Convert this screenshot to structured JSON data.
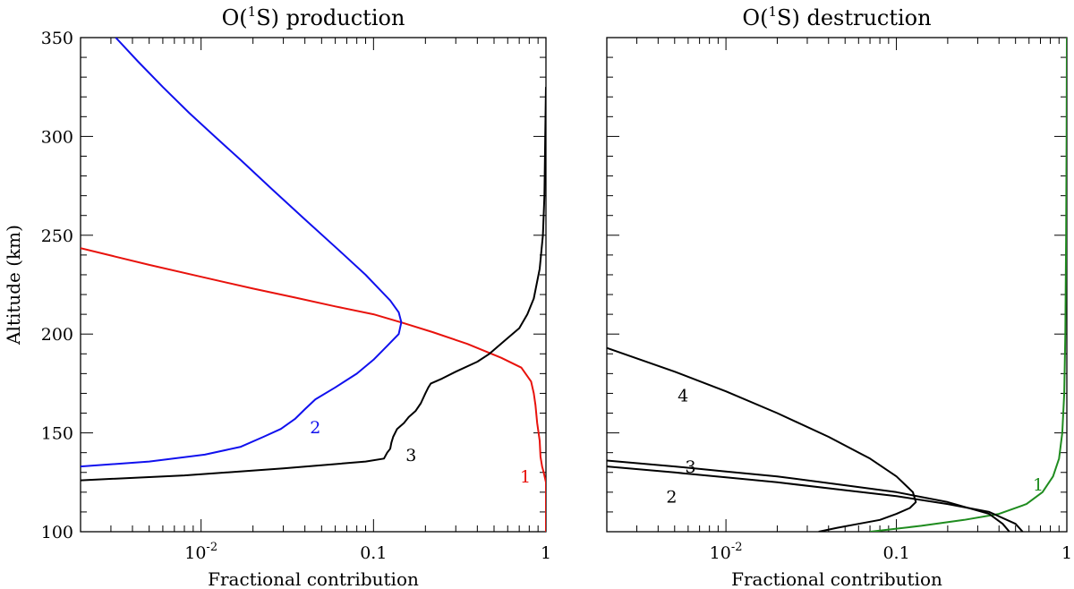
{
  "chart_data": [
    {
      "type": "line",
      "title": {
        "prefix": "O(",
        "sup": "1",
        "suffix": "S) production"
      },
      "xlabel": "Fractional contribution",
      "ylabel": "Altitude (km)",
      "xscale": "log",
      "xlim": [
        0.002,
        1
      ],
      "ylim": [
        100,
        350
      ],
      "grid": false,
      "x_major_ticks": [
        0.01,
        0.1,
        1
      ],
      "x_tick_labels": [
        {
          "base": "10",
          "exp": "-2"
        },
        {
          "base": "0.1",
          "exp": ""
        },
        {
          "base": "1",
          "exp": ""
        }
      ],
      "y_ticks": [
        100,
        150,
        200,
        250,
        300,
        350
      ],
      "y_tick_labels": [
        "100",
        "150",
        "200",
        "250",
        "300",
        "350"
      ],
      "series": [
        {
          "label": "1",
          "color": "#e8120c",
          "label_pos": {
            "x": 0.76,
            "y": 128
          },
          "points": [
            [
              1,
              100
            ],
            [
              1,
              125
            ],
            [
              0.97,
              130
            ],
            [
              0.95,
              133
            ],
            [
              0.93,
              138
            ],
            [
              0.92,
              146
            ],
            [
              0.89,
              155
            ],
            [
              0.87,
              164
            ],
            [
              0.85,
              170
            ],
            [
              0.82,
              176
            ],
            [
              0.72,
              183
            ],
            [
              0.55,
              188
            ],
            [
              0.35,
              195
            ],
            [
              0.22,
              201
            ],
            [
              0.15,
              205.5
            ],
            [
              0.1,
              210
            ],
            [
              0.06,
              214
            ],
            [
              0.035,
              218.5
            ],
            [
              0.02,
              223
            ],
            [
              0.01,
              229
            ],
            [
              0.005,
              235
            ],
            [
              0.002,
              243.5
            ]
          ]
        },
        {
          "label": "2",
          "color": "#1010ee",
          "label_pos": {
            "x": 0.046,
            "y": 153
          },
          "points": [
            [
              0.002,
              133
            ],
            [
              0.005,
              135.5
            ],
            [
              0.0105,
              139
            ],
            [
              0.017,
              143
            ],
            [
              0.023,
              148
            ],
            [
              0.029,
              152
            ],
            [
              0.035,
              157
            ],
            [
              0.04,
              162
            ],
            [
              0.046,
              167
            ],
            [
              0.06,
              173
            ],
            [
              0.08,
              180
            ],
            [
              0.1,
              187
            ],
            [
              0.12,
              194
            ],
            [
              0.14,
              200
            ],
            [
              0.145,
              206
            ],
            [
              0.14,
              211
            ],
            [
              0.125,
              217
            ],
            [
              0.11,
              222
            ],
            [
              0.09,
              230
            ],
            [
              0.062,
              243
            ],
            [
              0.04,
              258
            ],
            [
              0.026,
              273
            ],
            [
              0.017,
              288
            ],
            [
              0.012,
              300
            ],
            [
              0.0085,
              312
            ],
            [
              0.006,
              325
            ],
            [
              0.0043,
              338
            ],
            [
              0.0032,
              350
            ]
          ]
        },
        {
          "label": "3",
          "color": "#000000",
          "label_pos": {
            "x": 0.165,
            "y": 139
          },
          "points": [
            [
              0.002,
              126
            ],
            [
              0.008,
              128.5
            ],
            [
              0.03,
              132
            ],
            [
              0.09,
              135.5
            ],
            [
              0.115,
              137
            ],
            [
              0.12,
              140
            ],
            [
              0.125,
              142
            ],
            [
              0.127,
              145
            ],
            [
              0.13,
              148
            ],
            [
              0.137,
              152
            ],
            [
              0.15,
              155
            ],
            [
              0.16,
              158
            ],
            [
              0.175,
              161
            ],
            [
              0.188,
              165
            ],
            [
              0.2,
              170
            ],
            [
              0.208,
              173
            ],
            [
              0.215,
              175
            ],
            [
              0.25,
              177.5
            ],
            [
              0.3,
              181
            ],
            [
              0.4,
              186
            ],
            [
              0.47,
              190
            ],
            [
              0.6,
              198
            ],
            [
              0.7,
              203
            ],
            [
              0.78,
              210
            ],
            [
              0.85,
              218
            ],
            [
              0.92,
              233
            ],
            [
              0.96,
              250
            ],
            [
              0.98,
              270
            ],
            [
              0.99,
              300
            ],
            [
              1,
              325
            ]
          ]
        }
      ]
    },
    {
      "type": "line",
      "title": {
        "prefix": "O(",
        "sup": "1",
        "suffix": "S) destruction"
      },
      "xlabel": "Fractional contribution",
      "ylabel": "",
      "xscale": "log",
      "xlim": [
        0.002,
        1
      ],
      "ylim": [
        100,
        350
      ],
      "grid": false,
      "x_major_ticks": [
        0.01,
        0.1,
        1
      ],
      "x_tick_labels": [
        {
          "base": "10",
          "exp": "-2"
        },
        {
          "base": "0.1",
          "exp": ""
        },
        {
          "base": "1",
          "exp": ""
        }
      ],
      "y_ticks": [
        100,
        150,
        200,
        250,
        300,
        350
      ],
      "y_tick_labels": [],
      "series": [
        {
          "label": "1",
          "color": "#1f8c1f",
          "label_pos": {
            "x": 0.68,
            "y": 124
          },
          "points": [
            [
              0.07,
              100
            ],
            [
              0.14,
              103
            ],
            [
              0.25,
              106
            ],
            [
              0.4,
              109
            ],
            [
              0.58,
              114
            ],
            [
              0.72,
              120
            ],
            [
              0.83,
              128
            ],
            [
              0.9,
              137
            ],
            [
              0.94,
              150
            ],
            [
              0.965,
              170
            ],
            [
              0.98,
              200
            ],
            [
              0.99,
              250
            ],
            [
              0.996,
              300
            ],
            [
              1,
              350
            ]
          ]
        },
        {
          "label": "2",
          "color": "#000000",
          "label_pos": {
            "x": 0.0048,
            "y": 118
          },
          "points": [
            [
              0.002,
              133
            ],
            [
              0.005,
              130
            ],
            [
              0.01,
              127.5
            ],
            [
              0.02,
              125
            ],
            [
              0.05,
              121
            ],
            [
              0.1,
              118
            ],
            [
              0.2,
              114
            ],
            [
              0.35,
              110
            ],
            [
              0.5,
              104
            ],
            [
              0.55,
              100
            ]
          ]
        },
        {
          "label": "3",
          "color": "#000000",
          "label_pos": {
            "x": 0.0062,
            "y": 133
          },
          "points": [
            [
              0.002,
              136
            ],
            [
              0.005,
              133
            ],
            [
              0.01,
              130.5
            ],
            [
              0.02,
              128
            ],
            [
              0.05,
              123.5
            ],
            [
              0.1,
              120
            ],
            [
              0.2,
              115
            ],
            [
              0.35,
              109
            ],
            [
              0.42,
              104
            ],
            [
              0.46,
              100
            ]
          ]
        },
        {
          "label": "4",
          "color": "#000000",
          "label_pos": {
            "x": 0.0056,
            "y": 169
          },
          "points": [
            [
              0.002,
              193
            ],
            [
              0.005,
              181
            ],
            [
              0.01,
              171
            ],
            [
              0.02,
              160
            ],
            [
              0.04,
              148
            ],
            [
              0.07,
              137
            ],
            [
              0.1,
              128
            ],
            [
              0.125,
              120
            ],
            [
              0.13,
              115
            ],
            [
              0.12,
              112
            ],
            [
              0.1,
              109
            ],
            [
              0.08,
              106
            ],
            [
              0.06,
              104
            ],
            [
              0.045,
              102
            ],
            [
              0.035,
              100
            ]
          ]
        }
      ]
    }
  ]
}
